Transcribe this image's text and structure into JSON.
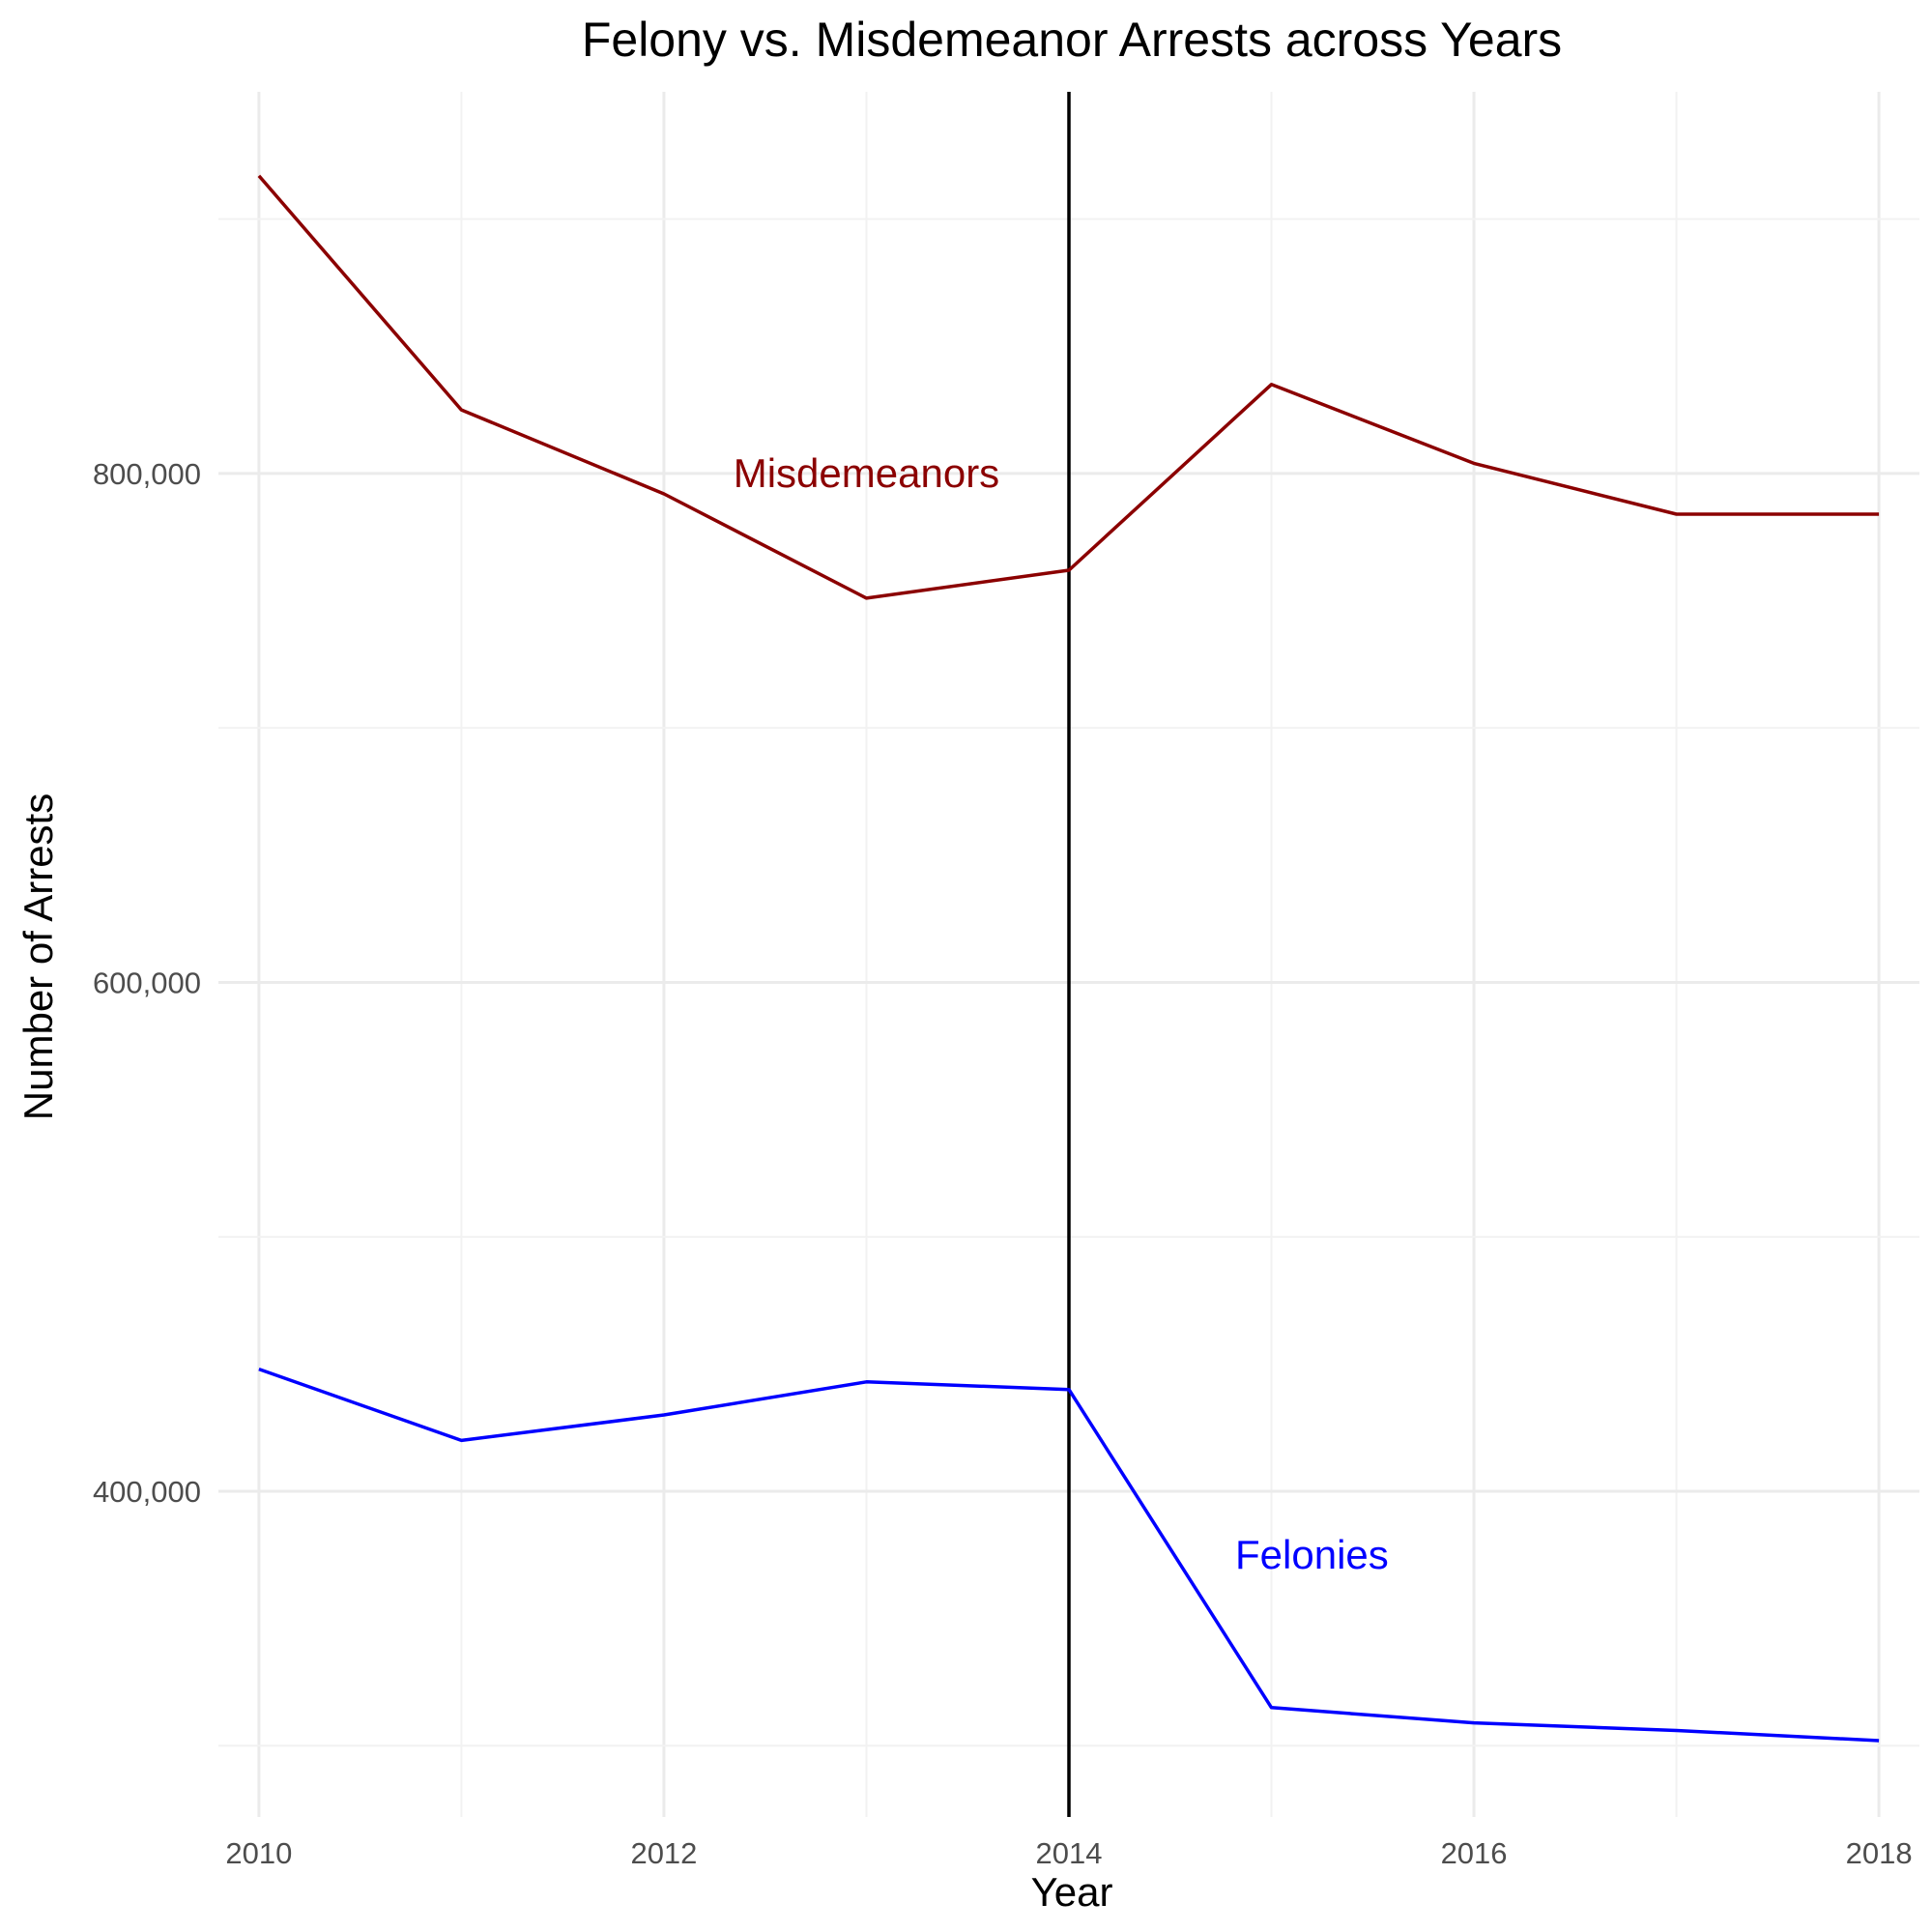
{
  "chart_data": {
    "type": "line",
    "title": "Felony vs. Misdemeanor Arrests across Years",
    "xlabel": "Year",
    "ylabel": "Number of Arrests",
    "x": [
      2010,
      2011,
      2012,
      2013,
      2014,
      2015,
      2016,
      2017,
      2018
    ],
    "x_ticks": [
      2010,
      2012,
      2014,
      2016,
      2018
    ],
    "x_tick_labels": [
      "2010",
      "2012",
      "2014",
      "2016",
      "2018"
    ],
    "xlim": [
      2009.8,
      2018.2
    ],
    "y_ticks": [
      400000,
      600000,
      800000
    ],
    "y_tick_labels": [
      "400,000",
      "600,000",
      "800,000"
    ],
    "ylim": [
      272000,
      950000
    ],
    "grid": true,
    "legend": "none",
    "series": [
      {
        "name": "Misdemeanors",
        "color": "#8B0000",
        "values": [
          917000,
          825000,
          792000,
          751000,
          762000,
          835000,
          804000,
          784000,
          784000
        ],
        "label_at": {
          "x": 2013,
          "y": 800000
        }
      },
      {
        "name": "Felonies",
        "color": "#0000FF",
        "values": [
          448000,
          420000,
          430000,
          443000,
          440000,
          315000,
          309000,
          306000,
          302000
        ],
        "label_at": {
          "x": 2015.2,
          "y": 375000
        }
      }
    ],
    "reference_lines": [
      {
        "axis": "x",
        "value": 2014,
        "color": "#000000"
      }
    ]
  }
}
